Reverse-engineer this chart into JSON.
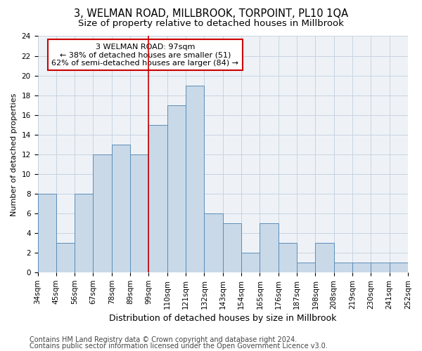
{
  "title": "3, WELMAN ROAD, MILLBROOK, TORPOINT, PL10 1QA",
  "subtitle": "Size of property relative to detached houses in Millbrook",
  "xlabel": "Distribution of detached houses by size in Millbrook",
  "ylabel": "Number of detached properties",
  "bar_values": [
    8,
    3,
    8,
    12,
    13,
    12,
    15,
    17,
    19,
    6,
    5,
    2,
    5,
    3,
    1,
    3,
    1,
    1,
    1,
    1
  ],
  "bin_labels": [
    "34sqm",
    "45sqm",
    "56sqm",
    "67sqm",
    "78sqm",
    "89sqm",
    "99sqm",
    "110sqm",
    "121sqm",
    "132sqm",
    "143sqm",
    "154sqm",
    "165sqm",
    "176sqm",
    "187sqm",
    "198sqm",
    "208sqm",
    "219sqm",
    "230sqm",
    "241sqm",
    "252sqm"
  ],
  "bar_color": "#c9d9e8",
  "bar_edge_color": "#5b8db8",
  "vline_x": 6,
  "vline_color": "#cc0000",
  "ylim": [
    0,
    24
  ],
  "yticks": [
    0,
    2,
    4,
    6,
    8,
    10,
    12,
    14,
    16,
    18,
    20,
    22,
    24
  ],
  "annotation_line1": "3 WELMAN ROAD: 97sqm",
  "annotation_line2": "← 38% of detached houses are smaller (51)",
  "annotation_line3": "62% of semi-detached houses are larger (84) →",
  "footer_line1": "Contains HM Land Registry data © Crown copyright and database right 2024.",
  "footer_line2": "Contains public sector information licensed under the Open Government Licence v3.0.",
  "background_color": "#eef2f7",
  "grid_color": "#c8d4e0",
  "title_fontsize": 10.5,
  "subtitle_fontsize": 9.5,
  "xlabel_fontsize": 9,
  "ylabel_fontsize": 8,
  "tick_fontsize": 7.5,
  "annotation_fontsize": 8,
  "footer_fontsize": 7
}
